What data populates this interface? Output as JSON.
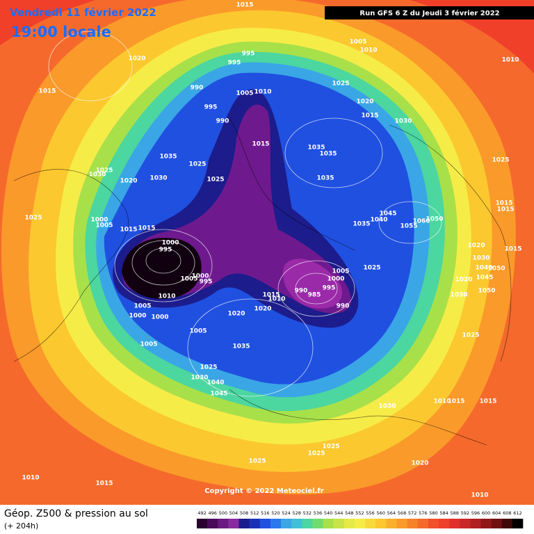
{
  "header": {
    "date": "Vendredi 11 février 2022",
    "time": "19:00 locale",
    "run": "Run GFS 6 Z du Jeudi 3 février 2022"
  },
  "footer": {
    "copyright": "Copyright © 2022 Meteociel.fr"
  },
  "legend": {
    "title": "Géop. Z500 & pression au sol",
    "subtitle": "(+ 204h)",
    "scale": [
      492,
      496,
      500,
      504,
      508,
      512,
      516,
      520,
      524,
      528,
      532,
      536,
      540,
      544,
      548,
      552,
      556,
      560,
      564,
      568,
      572,
      576,
      580,
      584,
      588,
      592,
      596,
      600,
      604,
      608,
      612
    ],
    "colors": [
      "#2a0030",
      "#4a0a5a",
      "#6a1a80",
      "#8a2aa0",
      "#1c1c8c",
      "#1830b8",
      "#2050e0",
      "#2a78ee",
      "#3aa6e6",
      "#40c0d8",
      "#4cd6a0",
      "#70dc70",
      "#a8e04a",
      "#c8e448",
      "#e4ea48",
      "#f6ec48",
      "#f8da3a",
      "#fbc830",
      "#fab02c",
      "#fa9a2a",
      "#f6822a",
      "#f56a2c",
      "#f0502a",
      "#f0402a",
      "#e0302a",
      "#c82828",
      "#b02020",
      "#901818",
      "#701010",
      "#400808",
      "#000000"
    ]
  },
  "isobar_labels": [
    1015,
    995,
    995,
    990,
    1005,
    1010,
    995,
    990,
    1015,
    1035,
    1025,
    1030,
    1025,
    1030,
    1020,
    1025,
    1025,
    1000,
    1005,
    1015,
    1015,
    1000,
    995,
    1005,
    1000,
    995,
    1010,
    1005,
    1000,
    1000,
    1005,
    1020,
    1020,
    1015,
    1010,
    1035,
    1005,
    1025,
    1030,
    1040,
    1045,
    990,
    985,
    995,
    990,
    1000,
    1005,
    1025,
    1035,
    1035,
    1035,
    1025,
    1020,
    1015,
    1030,
    1005,
    1010,
    1045,
    1040,
    1035,
    1055,
    1060,
    1050,
    1025,
    1015,
    1015,
    1020,
    1030,
    1015,
    1050,
    1040,
    1045,
    1020,
    1050,
    1030,
    1025,
    1030,
    1010,
    1015,
    1015,
    1025,
    1025,
    1025,
    1020,
    1010,
    1015,
    1010,
    1010,
    1020,
    1015
  ]
}
